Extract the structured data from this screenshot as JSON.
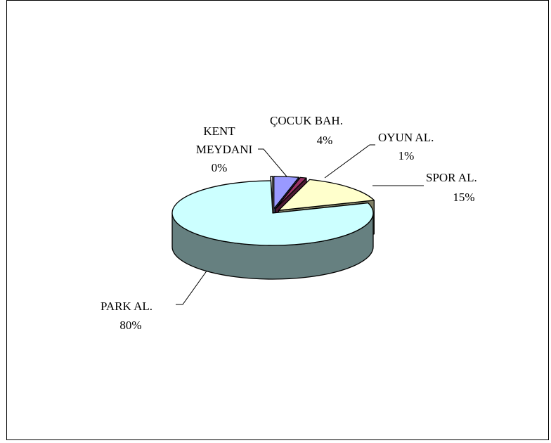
{
  "chart_data": {
    "type": "pie",
    "three_d": true,
    "exploded": true,
    "slices": [
      {
        "name": "ÇOCUK BAH.",
        "percent_label": "4%",
        "value": 4,
        "color": "#9999ff"
      },
      {
        "name": "OYUN AL.",
        "percent_label": "1%",
        "value": 1,
        "color": "#993366"
      },
      {
        "name": "SPOR AL.",
        "percent_label": "15%",
        "value": 15,
        "color": "#ffffcc"
      },
      {
        "name": "PARK AL.",
        "percent_label": "80%",
        "value": 80,
        "color": "#ccffff"
      },
      {
        "name": "KENT MEYDANI",
        "name_lines": [
          "KENT",
          "MEYDANI"
        ],
        "percent_label": "0%",
        "value": 0.3,
        "color": "#ffffff"
      }
    ],
    "legend": "none"
  }
}
